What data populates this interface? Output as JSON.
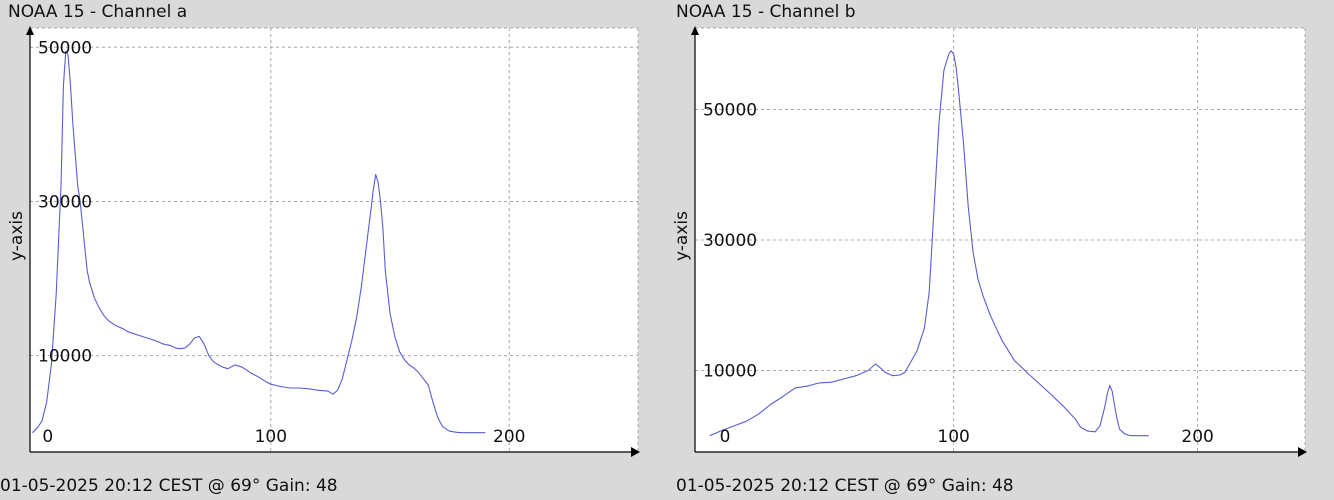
{
  "colors": {
    "series": "#5b5bd6"
  },
  "chart_data": [
    {
      "type": "line",
      "title": "NOAA 15 - Channel a",
      "footer": "01-05-2025 20:12 CEST @ 69° Gain: 48",
      "ylabel": "y-axis",
      "xlim": [
        -1,
        254
      ],
      "ylim": [
        -2500,
        52500
      ],
      "xticks": [
        0,
        100,
        200
      ],
      "yticks": [
        10000,
        30000,
        50000
      ],
      "grid": true,
      "series": [
        {
          "x": [
            0,
            2,
            4,
            6,
            8,
            10,
            12,
            13,
            14,
            15,
            16,
            17,
            18,
            19,
            20,
            21,
            22,
            23,
            24,
            26,
            28,
            30,
            32,
            35,
            38,
            40,
            42,
            45,
            48,
            50,
            52,
            55,
            58,
            60,
            62,
            64,
            66,
            68,
            70,
            72,
            74,
            76,
            78,
            80,
            82,
            85,
            88,
            90,
            92,
            95,
            98,
            100,
            104,
            108,
            112,
            116,
            120,
            124,
            126,
            128,
            130,
            132,
            134,
            136,
            138,
            140,
            142,
            143,
            144,
            145,
            146,
            147,
            148,
            150,
            152,
            154,
            156,
            158,
            160,
            162,
            164,
            166,
            168,
            170,
            172,
            175,
            178,
            180,
            182,
            185,
            190
          ],
          "y": [
            0,
            600,
            1500,
            4000,
            9000,
            18000,
            32000,
            45000,
            49500,
            49000,
            45000,
            40000,
            36000,
            32000,
            30000,
            27000,
            24000,
            21000,
            19500,
            17500,
            16200,
            15200,
            14500,
            13900,
            13500,
            13100,
            12900,
            12600,
            12300,
            12100,
            11900,
            11500,
            11300,
            11000,
            10900,
            11000,
            11500,
            12300,
            12500,
            11500,
            10000,
            9200,
            8800,
            8500,
            8300,
            8800,
            8500,
            8100,
            7700,
            7200,
            6600,
            6300,
            6000,
            5800,
            5800,
            5700,
            5500,
            5400,
            5000,
            5500,
            7000,
            9500,
            12000,
            15000,
            19000,
            24000,
            29000,
            31500,
            33500,
            32500,
            30000,
            26500,
            21000,
            15500,
            12500,
            10500,
            9500,
            8800,
            8400,
            7800,
            7000,
            6200,
            4000,
            2000,
            800,
            200,
            50,
            0,
            0,
            0,
            0
          ]
        }
      ]
    },
    {
      "type": "line",
      "title": "NOAA 15 - Channel b",
      "footer": "01-05-2025 20:12 CEST @ 69° Gain: 48",
      "ylabel": "y-axis",
      "xlim": [
        -6,
        244
      ],
      "ylim": [
        -2500,
        62500
      ],
      "xticks": [
        0,
        100,
        200
      ],
      "yticks": [
        10000,
        30000,
        50000
      ],
      "grid": true,
      "series": [
        {
          "x": [
            0,
            5,
            10,
            15,
            20,
            25,
            30,
            35,
            40,
            45,
            50,
            55,
            60,
            65,
            68,
            70,
            72,
            75,
            78,
            80,
            82,
            85,
            88,
            90,
            92,
            94,
            96,
            98,
            99,
            100,
            101,
            102,
            104,
            106,
            108,
            110,
            112,
            115,
            118,
            120,
            125,
            130,
            135,
            140,
            145,
            150,
            152,
            155,
            158,
            160,
            162,
            163,
            164,
            165,
            166,
            167,
            168,
            170,
            172,
            175,
            178,
            180
          ],
          "y": [
            0,
            800,
            1500,
            2200,
            3300,
            4800,
            6000,
            7300,
            7600,
            8100,
            8200,
            8700,
            9200,
            10000,
            11000,
            10400,
            9700,
            9200,
            9300,
            9700,
            11000,
            13000,
            16500,
            22000,
            35000,
            48000,
            56000,
            58500,
            59000,
            58500,
            56500,
            53000,
            45000,
            35000,
            28000,
            24000,
            21500,
            18500,
            16000,
            14500,
            11500,
            9700,
            8000,
            6300,
            4500,
            2500,
            1300,
            700,
            600,
            1500,
            4500,
            6500,
            7700,
            6800,
            4500,
            2500,
            1000,
            300,
            50,
            0,
            0,
            0
          ]
        }
      ]
    }
  ]
}
